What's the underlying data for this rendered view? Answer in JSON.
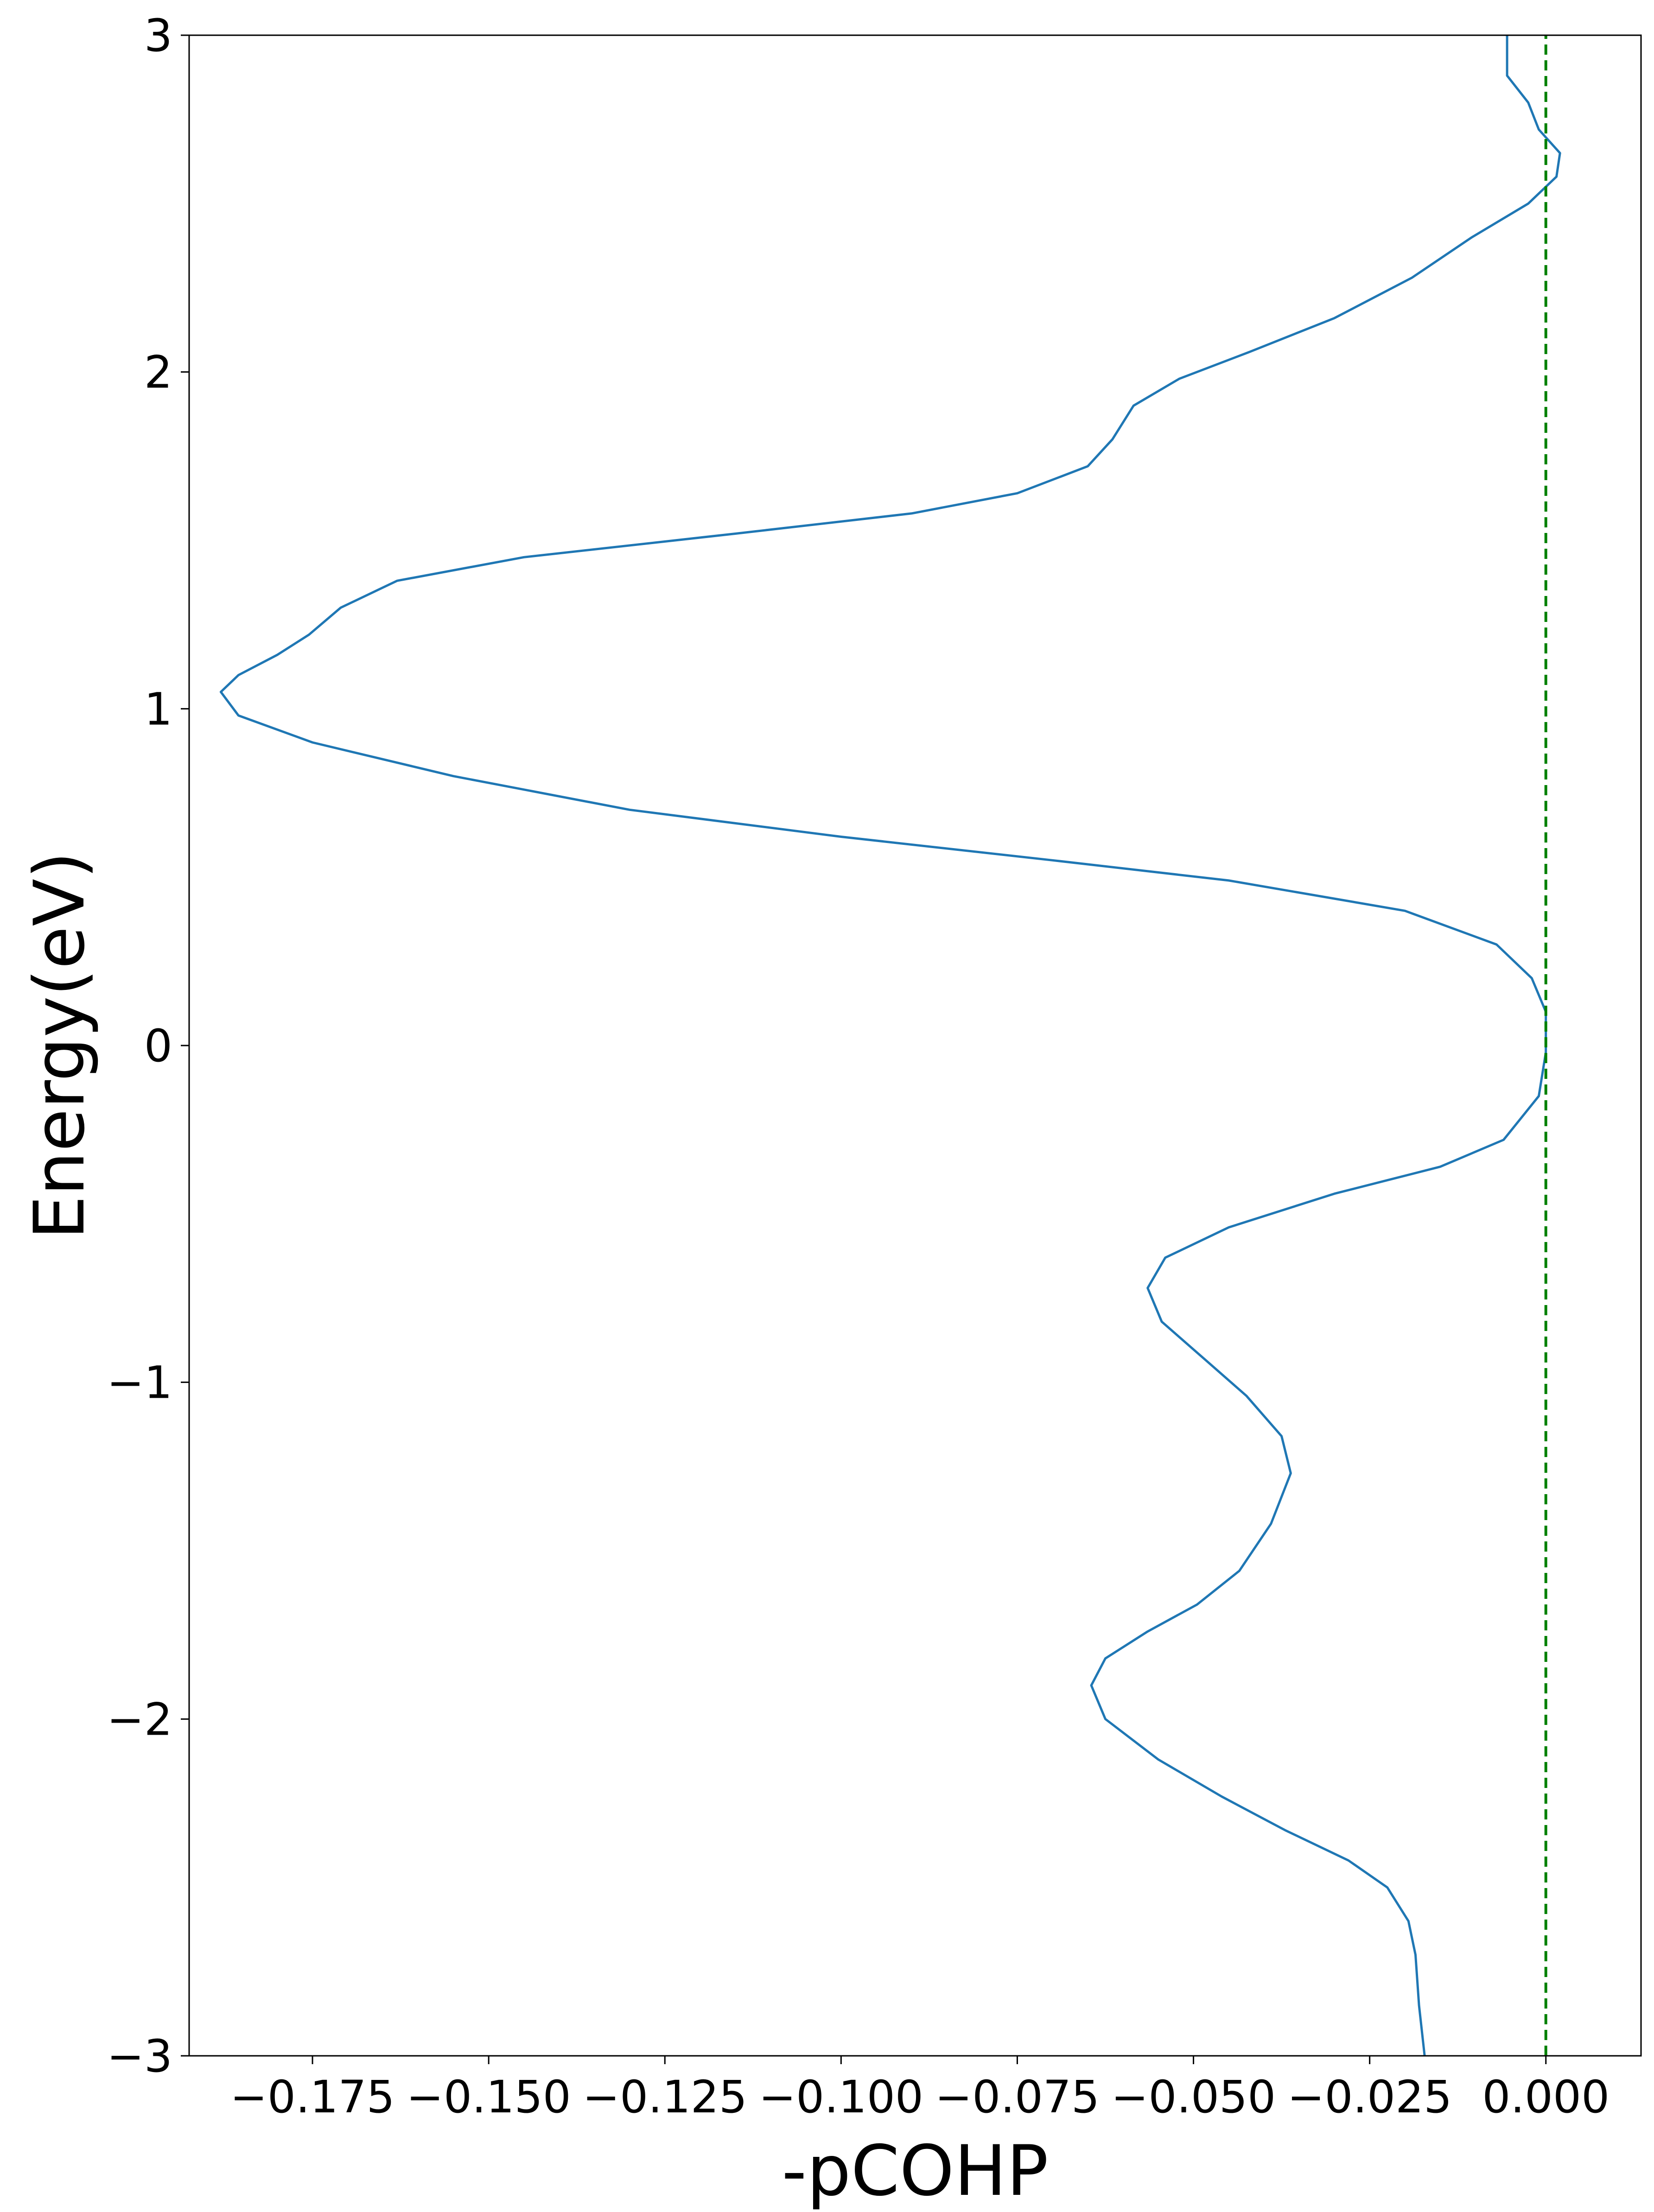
{
  "chart_data": {
    "type": "line",
    "xlabel": "-pCOHP",
    "ylabel": "Energy(eV)",
    "xlim": [
      -0.1925,
      0.0135
    ],
    "ylim": [
      -3,
      3
    ],
    "grid": false,
    "x_ticks": [
      {
        "value": -0.175,
        "label": "−0.175"
      },
      {
        "value": -0.15,
        "label": "−0.150"
      },
      {
        "value": -0.125,
        "label": "−0.125"
      },
      {
        "value": -0.1,
        "label": "−0.100"
      },
      {
        "value": -0.075,
        "label": "−0.075"
      },
      {
        "value": -0.05,
        "label": "−0.050"
      },
      {
        "value": -0.025,
        "label": "−0.025"
      },
      {
        "value": 0.0,
        "label": "0.000"
      }
    ],
    "y_ticks": [
      {
        "value": -3,
        "label": "−3"
      },
      {
        "value": -2,
        "label": "−2"
      },
      {
        "value": -1,
        "label": "−1"
      },
      {
        "value": 0,
        "label": "0"
      },
      {
        "value": 1,
        "label": "1"
      },
      {
        "value": 2,
        "label": "2"
      },
      {
        "value": 3,
        "label": "3"
      }
    ],
    "series": [
      {
        "color": "#1f77b4",
        "points": [
          [
            -0.0172,
            -3.0
          ],
          [
            -0.018,
            -2.85
          ],
          [
            -0.0185,
            -2.7
          ],
          [
            -0.0195,
            -2.6
          ],
          [
            -0.0225,
            -2.5
          ],
          [
            -0.028,
            -2.42
          ],
          [
            -0.037,
            -2.33
          ],
          [
            -0.046,
            -2.23
          ],
          [
            -0.055,
            -2.12
          ],
          [
            -0.0625,
            -2.0
          ],
          [
            -0.0645,
            -1.9
          ],
          [
            -0.0625,
            -1.82
          ],
          [
            -0.0565,
            -1.74
          ],
          [
            -0.0495,
            -1.66
          ],
          [
            -0.0435,
            -1.56
          ],
          [
            -0.039,
            -1.42
          ],
          [
            -0.0362,
            -1.27
          ],
          [
            -0.0375,
            -1.16
          ],
          [
            -0.0425,
            -1.04
          ],
          [
            -0.0485,
            -0.93
          ],
          [
            -0.0545,
            -0.82
          ],
          [
            -0.0565,
            -0.72
          ],
          [
            -0.054,
            -0.63
          ],
          [
            -0.045,
            -0.54
          ],
          [
            -0.03,
            -0.44
          ],
          [
            -0.015,
            -0.36
          ],
          [
            -0.006,
            -0.28
          ],
          [
            -0.001,
            -0.15
          ],
          [
            0.0,
            -0.02
          ],
          [
            0.0,
            0.05
          ],
          [
            0.0,
            0.1
          ],
          [
            -0.002,
            0.2
          ],
          [
            -0.007,
            0.3
          ],
          [
            -0.02,
            0.4
          ],
          [
            -0.045,
            0.49
          ],
          [
            -0.07,
            0.55
          ],
          [
            -0.1,
            0.62
          ],
          [
            -0.13,
            0.7
          ],
          [
            -0.155,
            0.8
          ],
          [
            -0.175,
            0.9
          ],
          [
            -0.1855,
            0.98
          ],
          [
            -0.188,
            1.05
          ],
          [
            -0.1855,
            1.1
          ],
          [
            -0.18,
            1.16
          ],
          [
            -0.1755,
            1.22
          ],
          [
            -0.171,
            1.3
          ],
          [
            -0.163,
            1.38
          ],
          [
            -0.145,
            1.45
          ],
          [
            -0.115,
            1.52
          ],
          [
            -0.09,
            1.58
          ],
          [
            -0.075,
            1.64
          ],
          [
            -0.065,
            1.72
          ],
          [
            -0.0615,
            1.8
          ],
          [
            -0.0585,
            1.9
          ],
          [
            -0.052,
            1.98
          ],
          [
            -0.042,
            2.06
          ],
          [
            -0.03,
            2.16
          ],
          [
            -0.019,
            2.28
          ],
          [
            -0.0105,
            2.4
          ],
          [
            -0.0025,
            2.5
          ],
          [
            0.0015,
            2.58
          ],
          [
            0.002,
            2.65
          ],
          [
            -0.001,
            2.72
          ],
          [
            -0.0025,
            2.8
          ],
          [
            -0.0055,
            2.88
          ],
          [
            -0.0055,
            3.0
          ]
        ]
      },
      {
        "color": "#008000",
        "style": "dashed",
        "points": [
          [
            0.0,
            -3.0
          ],
          [
            0.0,
            3.0
          ]
        ]
      }
    ]
  }
}
